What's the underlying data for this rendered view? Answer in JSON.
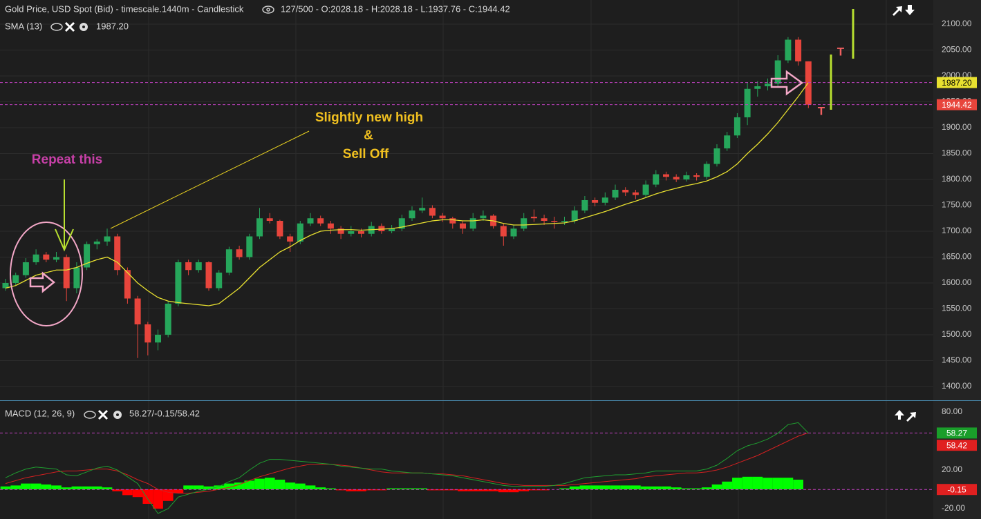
{
  "header": {
    "title": "Gold Price, USD Spot (Bid) - timescale.1440m - Candlestick",
    "ohlc_info": "127/500 - O:2028.18 - H:2028.18 - L:1937.76 - C:1944.42"
  },
  "annotations": {
    "repeat": "Repeat this",
    "high": "Slightly new high",
    "amp": "&",
    "selloff": "Sell Off",
    "t1": "T",
    "t2": "T"
  },
  "chart_data": [
    {
      "type": "candlestick",
      "up_color": "#26a65b",
      "down_color": "#e8453c",
      "categories": [
        null,
        null,
        null,
        null,
        null,
        null,
        null,
        null,
        null,
        null,
        null,
        null,
        null,
        null,
        null,
        null,
        null,
        null,
        null,
        null,
        null,
        null,
        null,
        null,
        null,
        null,
        null,
        null,
        null,
        null,
        null,
        null,
        null,
        null,
        null,
        null,
        null,
        null,
        null,
        null,
        null,
        null,
        null,
        null,
        null,
        null,
        null,
        null,
        null,
        null,
        null,
        null,
        null,
        null,
        null,
        null,
        null,
        null,
        null,
        null,
        null,
        null,
        null,
        null,
        null,
        null,
        null,
        null,
        null,
        null,
        null,
        null,
        null,
        null,
        null,
        null,
        null,
        null,
        null,
        null
      ],
      "open": [
        1590,
        1600,
        1615,
        1640,
        1655,
        1645,
        1650,
        1590,
        1630,
        1675,
        1680,
        1690,
        1625,
        1570,
        1520,
        1485,
        1500,
        1560,
        1640,
        1625,
        1640,
        1590,
        1620,
        1665,
        1650,
        1690,
        1725,
        1720,
        1690,
        1680,
        1715,
        1725,
        1715,
        1705,
        1695,
        1700,
        1695,
        1710,
        1700,
        1705,
        1725,
        1740,
        1745,
        1730,
        1725,
        1715,
        1705,
        1725,
        1730,
        1710,
        1690,
        1705,
        1728,
        1725,
        1720,
        1718,
        1720,
        1740,
        1760,
        1755,
        1765,
        1780,
        1775,
        1770,
        1790,
        1810,
        1805,
        1800,
        1808,
        1805,
        1830,
        1860,
        1885,
        1920,
        1975,
        1980,
        1985,
        2030,
        2070,
        2028.18
      ],
      "high": [
        1608,
        1620,
        1648,
        1665,
        1660,
        1660,
        1655,
        1640,
        1680,
        1685,
        1705,
        1695,
        1630,
        1575,
        1525,
        1510,
        1565,
        1645,
        1645,
        1645,
        1642,
        1625,
        1670,
        1672,
        1695,
        1745,
        1735,
        1722,
        1695,
        1720,
        1735,
        1730,
        1720,
        1710,
        1710,
        1705,
        1718,
        1715,
        1712,
        1732,
        1748,
        1765,
        1750,
        1735,
        1728,
        1720,
        1735,
        1740,
        1733,
        1715,
        1712,
        1735,
        1742,
        1732,
        1728,
        1728,
        1748,
        1768,
        1765,
        1775,
        1790,
        1785,
        1780,
        1798,
        1818,
        1815,
        1810,
        1815,
        1812,
        1835,
        1868,
        1892,
        1928,
        1988,
        1990,
        1995,
        2040,
        2075,
        2075,
        2028.18
      ],
      "low": [
        1585,
        1595,
        1610,
        1635,
        1640,
        1640,
        1565,
        1580,
        1625,
        1665,
        1672,
        1615,
        1560,
        1455,
        1460,
        1470,
        1495,
        1555,
        1615,
        1620,
        1585,
        1585,
        1615,
        1645,
        1645,
        1685,
        1715,
        1685,
        1660,
        1675,
        1710,
        1710,
        1695,
        1685,
        1690,
        1688,
        1690,
        1695,
        1696,
        1700,
        1720,
        1735,
        1725,
        1718,
        1705,
        1695,
        1700,
        1720,
        1705,
        1672,
        1685,
        1700,
        1718,
        1712,
        1705,
        1712,
        1715,
        1735,
        1748,
        1750,
        1760,
        1768,
        1762,
        1765,
        1785,
        1798,
        1795,
        1796,
        1798,
        1800,
        1825,
        1855,
        1880,
        1905,
        1960,
        1972,
        1980,
        2025,
        2020,
        1937.76
      ],
      "close": [
        1600,
        1615,
        1640,
        1655,
        1645,
        1650,
        1590,
        1630,
        1675,
        1680,
        1690,
        1625,
        1570,
        1520,
        1485,
        1500,
        1560,
        1640,
        1625,
        1640,
        1590,
        1620,
        1665,
        1650,
        1690,
        1725,
        1720,
        1690,
        1680,
        1715,
        1725,
        1715,
        1705,
        1695,
        1700,
        1695,
        1710,
        1700,
        1705,
        1725,
        1740,
        1745,
        1730,
        1725,
        1715,
        1705,
        1725,
        1730,
        1710,
        1690,
        1705,
        1725,
        1725,
        1720,
        1718,
        1720,
        1740,
        1760,
        1755,
        1765,
        1780,
        1775,
        1770,
        1790,
        1810,
        1805,
        1800,
        1808,
        1805,
        1830,
        1860,
        1885,
        1920,
        1975,
        1980,
        1985,
        2030,
        2070,
        2028.18,
        1944.42
      ],
      "sma": {
        "name": "SMA (13)",
        "color": "#e8e030",
        "last": {
          "value": 1987.2,
          "label": "1987.20"
        },
        "values": [
          1590,
          1595,
          1605,
          1615,
          1620,
          1625,
          1625,
          1630,
          1638,
          1645,
          1650,
          1640,
          1620,
          1600,
          1585,
          1572,
          1565,
          1562,
          1560,
          1558,
          1556,
          1560,
          1575,
          1590,
          1610,
          1630,
          1645,
          1660,
          1670,
          1682,
          1692,
          1700,
          1702,
          1703,
          1703,
          1702,
          1703,
          1704,
          1705,
          1708,
          1712,
          1716,
          1720,
          1722,
          1722,
          1720,
          1720,
          1722,
          1720,
          1715,
          1712,
          1712,
          1713,
          1714,
          1715,
          1716,
          1720,
          1726,
          1732,
          1738,
          1745,
          1752,
          1758,
          1765,
          1772,
          1778,
          1783,
          1788,
          1792,
          1797,
          1805,
          1815,
          1830,
          1850,
          1868,
          1888,
          1910,
          1935,
          1960,
          1987.2
        ]
      },
      "last_close": {
        "value": 1944.42,
        "label": "1944.42",
        "color": "#e8453c"
      },
      "ylim": [
        1373.33,
        2146.67
      ],
      "yticks": [
        {
          "value": 1400,
          "label": "1400.00"
        },
        {
          "value": 1450,
          "label": "1450.00"
        },
        {
          "value": 1500,
          "label": "1500.00"
        },
        {
          "value": 1550,
          "label": "1550.00"
        },
        {
          "value": 1600,
          "label": "1600.00"
        },
        {
          "value": 1650,
          "label": "1650.00"
        },
        {
          "value": 1700,
          "label": "1700.00"
        },
        {
          "value": 1750,
          "label": "1750.00"
        },
        {
          "value": 1800,
          "label": "1800.00"
        },
        {
          "value": 1850,
          "label": "1850.00"
        },
        {
          "value": 1900,
          "label": "1900.00"
        },
        {
          "value": 1950,
          "label": "1950.00"
        },
        {
          "value": 2000,
          "label": "2000.00"
        },
        {
          "value": 2050,
          "label": "2050.00"
        },
        {
          "value": 2100,
          "label": "2100.00"
        }
      ],
      "grid": true
    },
    {
      "type": "macd",
      "title": "MACD (12, 26, 9)",
      "readout": "58.27/-0.15/58.42",
      "macd": {
        "color": "#1fa030",
        "values": [
          12,
          17,
          21,
          23,
          22,
          21,
          15,
          14,
          18,
          22,
          24,
          20,
          13,
          6,
          -10,
          -25,
          -20,
          -8,
          -5,
          -2,
          0,
          3,
          8,
          12,
          20,
          27,
          31,
          31,
          30,
          29,
          28,
          27,
          26,
          24,
          23,
          22,
          21,
          21,
          19,
          18,
          17,
          17,
          16,
          15,
          14,
          12,
          10,
          8,
          6,
          4,
          3,
          3,
          3,
          3,
          4,
          6,
          9,
          12,
          13,
          14,
          15,
          15,
          16,
          17,
          19,
          19,
          19,
          19,
          19,
          21,
          25,
          32,
          40,
          45,
          48,
          52,
          58,
          67,
          69,
          58.27
        ]
      },
      "signal": {
        "color": "#d42020",
        "values": [
          6,
          9,
          12,
          14,
          16,
          18,
          19,
          19,
          20,
          21,
          21,
          19,
          15,
          10,
          6,
          0,
          -3,
          -4,
          -4,
          -3,
          -2,
          0,
          2,
          5,
          9,
          13,
          16,
          19,
          22,
          24,
          26,
          26,
          26,
          25,
          24,
          22,
          20,
          18,
          17,
          17,
          17,
          17,
          16,
          16,
          15,
          14,
          12,
          10,
          8,
          6,
          5,
          4,
          4,
          4,
          4,
          4,
          5,
          6,
          7,
          8,
          9,
          10,
          11,
          13,
          14,
          15,
          16,
          17,
          17,
          18,
          20,
          23,
          27,
          31,
          35,
          40,
          45,
          50,
          55,
          58.42
        ]
      },
      "histogram": {
        "positive_color": "#00ff00",
        "negative_color": "#ff0000",
        "values": [
          3,
          4,
          6,
          6,
          5,
          4,
          2,
          3,
          3,
          3,
          2,
          -2,
          -6,
          -8,
          -15,
          -20,
          -12,
          -4,
          4,
          4,
          3,
          4,
          6,
          7,
          9,
          11,
          12,
          10,
          7,
          6,
          4,
          2,
          1,
          -1,
          -2,
          -2,
          -1,
          -1,
          1,
          1,
          1,
          1,
          -1,
          -1,
          -1,
          -2,
          -2,
          -2,
          -2,
          -3,
          -3,
          -2,
          -1,
          -1,
          0,
          1,
          3,
          4,
          4,
          4,
          4,
          4,
          4,
          3,
          3,
          3,
          2,
          1,
          1,
          2,
          5,
          8,
          12,
          13,
          13,
          12,
          12,
          12,
          10,
          -0.15
        ]
      },
      "levels": [
        {
          "value": 58.27,
          "label": "58.27",
          "color": "#1a9e2a"
        },
        {
          "value": 58.42,
          "label": "58.42",
          "color": "#e02020"
        },
        {
          "value": -0.15,
          "label": "-0.15",
          "color": "#e02020"
        }
      ],
      "ylim": [
        -30.71,
        90.71
      ],
      "yticks": [
        {
          "value": 80,
          "label": "80.00"
        },
        {
          "value": 20,
          "label": "20.00"
        },
        {
          "value": -20,
          "label": "-20.00"
        }
      ]
    }
  ]
}
